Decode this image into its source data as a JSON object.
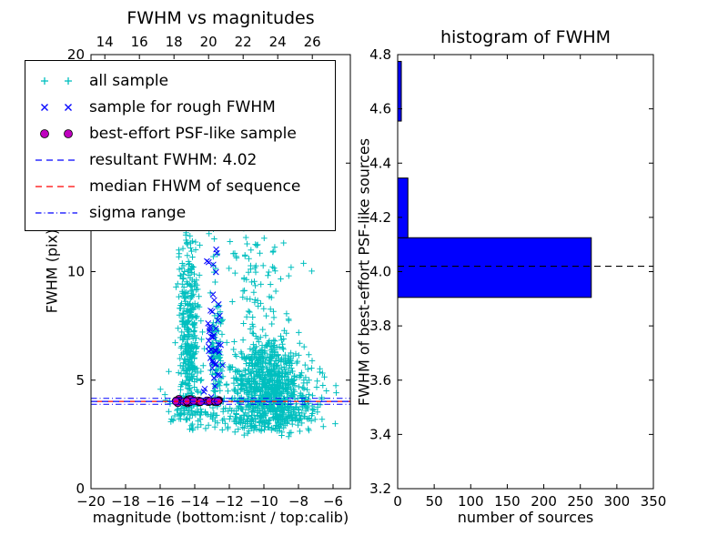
{
  "figure": {
    "background": "#ffffff"
  },
  "chart_data": [
    {
      "type": "scatter",
      "title": "FWHM vs magnitudes",
      "xlabel": "magnitude (bottom:isnt / top:calib)",
      "ylabel": "FWHM (pix)",
      "xlim": [
        -20,
        -5
      ],
      "ylim": [
        0,
        20
      ],
      "x_ticks": [
        -20,
        -18,
        -16,
        -14,
        -12,
        -10,
        -8,
        -6
      ],
      "x_ticks_top": [
        14,
        16,
        18,
        20,
        22,
        24,
        26
      ],
      "top_axis_offset": 33.2,
      "y_ticks": [
        0,
        5,
        10,
        15,
        20
      ],
      "resultant_fwhm": 4.02,
      "series": [
        {
          "name": "all sample",
          "marker": "plus",
          "color": "#00bfbf",
          "clusters": [
            {
              "cx": -14.35,
              "sx": 0.3,
              "cy": 7.0,
              "sy": 2.6,
              "n": 380,
              "clipy": [
                2.7,
                13.6
              ]
            },
            {
              "cx": -12.75,
              "sx": 0.22,
              "cy": 6.3,
              "sy": 1.9,
              "n": 110,
              "clipy": [
                3.0,
                11.5
              ]
            },
            {
              "cx": -9.85,
              "sx": 1.05,
              "cy": 4.7,
              "sy": 1.15,
              "n": 850,
              "clipx": [
                -12.6,
                -6.4
              ],
              "clipy": [
                2.4,
                9.2
              ]
            },
            {
              "cx": -10.4,
              "sx": 1.1,
              "cy": 9.6,
              "sy": 1.4,
              "n": 75,
              "clipy": [
                7.5,
                14.0
              ]
            },
            {
              "cx": -10.9,
              "sx": 1.1,
              "cy": 14.0,
              "sy": 2.4,
              "n": 38,
              "clipy": [
                10.5,
                20.0
              ]
            },
            {
              "ux": [
                -15.4,
                -7.2
              ],
              "cy": 3.3,
              "sy": 0.28,
              "n": 160,
              "clipy": [
                2.6,
                4.2
              ]
            },
            {
              "cx": -7.1,
              "sx": 0.75,
              "cy": 4.2,
              "sy": 0.95,
              "n": 45,
              "clipx": [
                -8.3,
                -5.5
              ],
              "clipy": [
                2.6,
                6.5
              ]
            },
            {
              "ux": [
                -16.1,
                -15.2
              ],
              "cy": 4.1,
              "sy": 0.9,
              "n": 7,
              "clipy": [
                3.0,
                6.0
              ]
            }
          ]
        },
        {
          "name": "sample for rough FWHM",
          "marker": "x",
          "color": "#0000ff",
          "clusters": [
            {
              "cx": -12.95,
              "sx": 0.3,
              "cy": 6.8,
              "sy": 1.5,
              "n": 40,
              "clipx": [
                -13.7,
                -12.3
              ],
              "clipy": [
                4.2,
                10.2
              ]
            },
            {
              "cx": -13.05,
              "sx": 0.22,
              "cy": 10.4,
              "sy": 0.45,
              "n": 6
            }
          ]
        },
        {
          "name": "best-effort PSF-like sample",
          "marker": "circle",
          "color": "#bf00bf",
          "edge": "#000000",
          "clusters": [
            {
              "ux": [
                -15.15,
                -12.55
              ],
              "cy": 4.03,
              "sy": 0.055,
              "n": 34
            }
          ]
        }
      ],
      "ref_lines": [
        {
          "name": "median-fwhm-line",
          "y": 4.02,
          "color": "#ff0000",
          "dash": "7,5",
          "offset": 6,
          "width": 1.3
        },
        {
          "name": "resultant-fwhm-line",
          "y": 4.02,
          "color": "#0000ff",
          "dash": "7,5",
          "offset": 0,
          "width": 1.3
        },
        {
          "name": "sigma-range-low-line",
          "y": 3.89,
          "color": "#0000ff",
          "dash": "6.5,3,1,3",
          "offset": 0,
          "width": 1
        },
        {
          "name": "sigma-range-high-line",
          "y": 4.16,
          "color": "#0000ff",
          "dash": "6.5,3,1,3",
          "offset": 0,
          "width": 1
        }
      ],
      "legend": {
        "items": [
          {
            "label": "all sample",
            "marker": "plus",
            "color": "#00bfbf"
          },
          {
            "label": "sample for rough FWHM",
            "marker": "x",
            "color": "#0000ff"
          },
          {
            "label": "best-effort PSF-like sample",
            "marker": "circle",
            "color": "#bf00bf"
          },
          {
            "label": "resultant FWHM: 4.02",
            "marker": "dashed-line",
            "color": "#0000ff"
          },
          {
            "label": "median FHWM of sequence",
            "marker": "dashed-line",
            "color": "#ff0000"
          },
          {
            "label": "sigma range",
            "marker": "dashdot-line",
            "color": "#0000ff"
          }
        ]
      }
    },
    {
      "type": "bar",
      "orientation": "horizontal",
      "title": "histogram of FWHM",
      "xlabel": "number of sources",
      "ylabel": "FWHM of best-effort PSF-like sources",
      "xlim": [
        0,
        350
      ],
      "ylim": [
        3.2,
        4.8
      ],
      "x_ticks": [
        0,
        50,
        100,
        150,
        200,
        250,
        300,
        350
      ],
      "y_ticks": [
        3.2,
        3.4,
        3.6,
        3.8,
        4.0,
        4.2,
        4.4,
        4.6,
        4.8
      ],
      "y_tick_decimals": 1,
      "bar_color": "#0000ff",
      "bar_edge": "#000000",
      "bars": [
        {
          "from": 3.905,
          "to": 4.125,
          "count": 265
        },
        {
          "from": 4.125,
          "to": 4.345,
          "count": 14
        },
        {
          "from": 4.555,
          "to": 4.775,
          "count": 5
        }
      ],
      "median_line": {
        "y": 4.02,
        "color": "#000000",
        "dash": "7,5"
      }
    }
  ]
}
